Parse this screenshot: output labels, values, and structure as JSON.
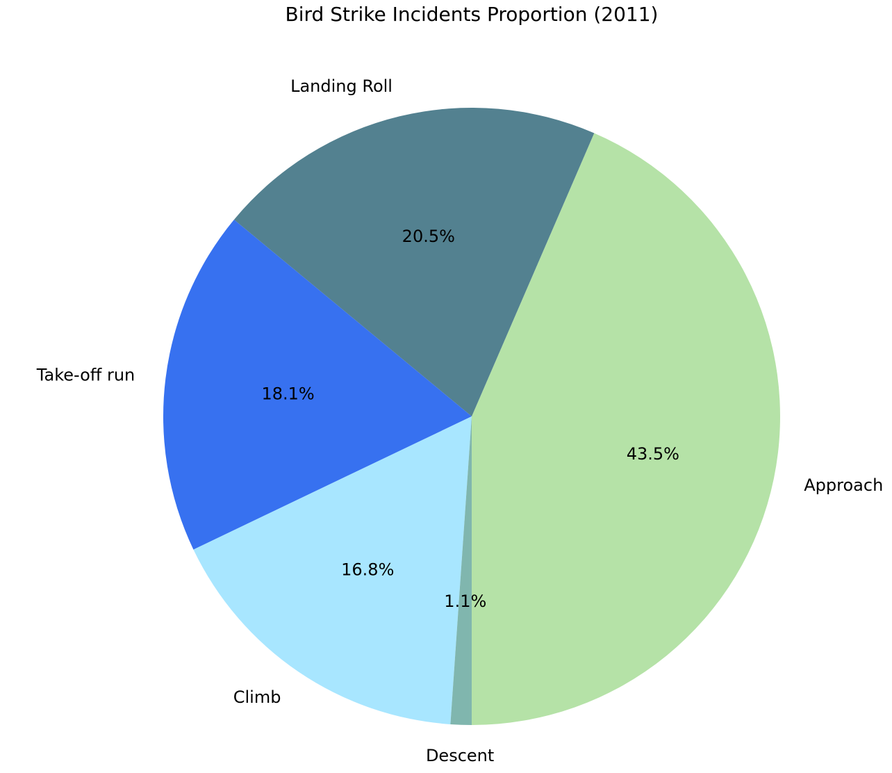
{
  "chart_data": {
    "type": "pie",
    "title": "Bird Strike Incidents Proportion (2011)",
    "start_angle_deg": -90,
    "direction": "counterclockwise",
    "legend": "none",
    "slices": [
      {
        "label": "Approach",
        "value": 43.5,
        "pct_label": "43.5%",
        "color": "#b5e2a7"
      },
      {
        "label": "Landing Roll",
        "value": 20.5,
        "pct_label": "20.5%",
        "color": "#538190"
      },
      {
        "label": "Take-off run",
        "value": 18.1,
        "pct_label": "18.1%",
        "color": "#3771f0"
      },
      {
        "label": "Climb",
        "value": 16.8,
        "pct_label": "16.8%",
        "color": "#a8e6ff"
      },
      {
        "label": "Descent",
        "value": 1.1,
        "pct_label": "1.1%",
        "color": "#80b6ae"
      }
    ]
  }
}
